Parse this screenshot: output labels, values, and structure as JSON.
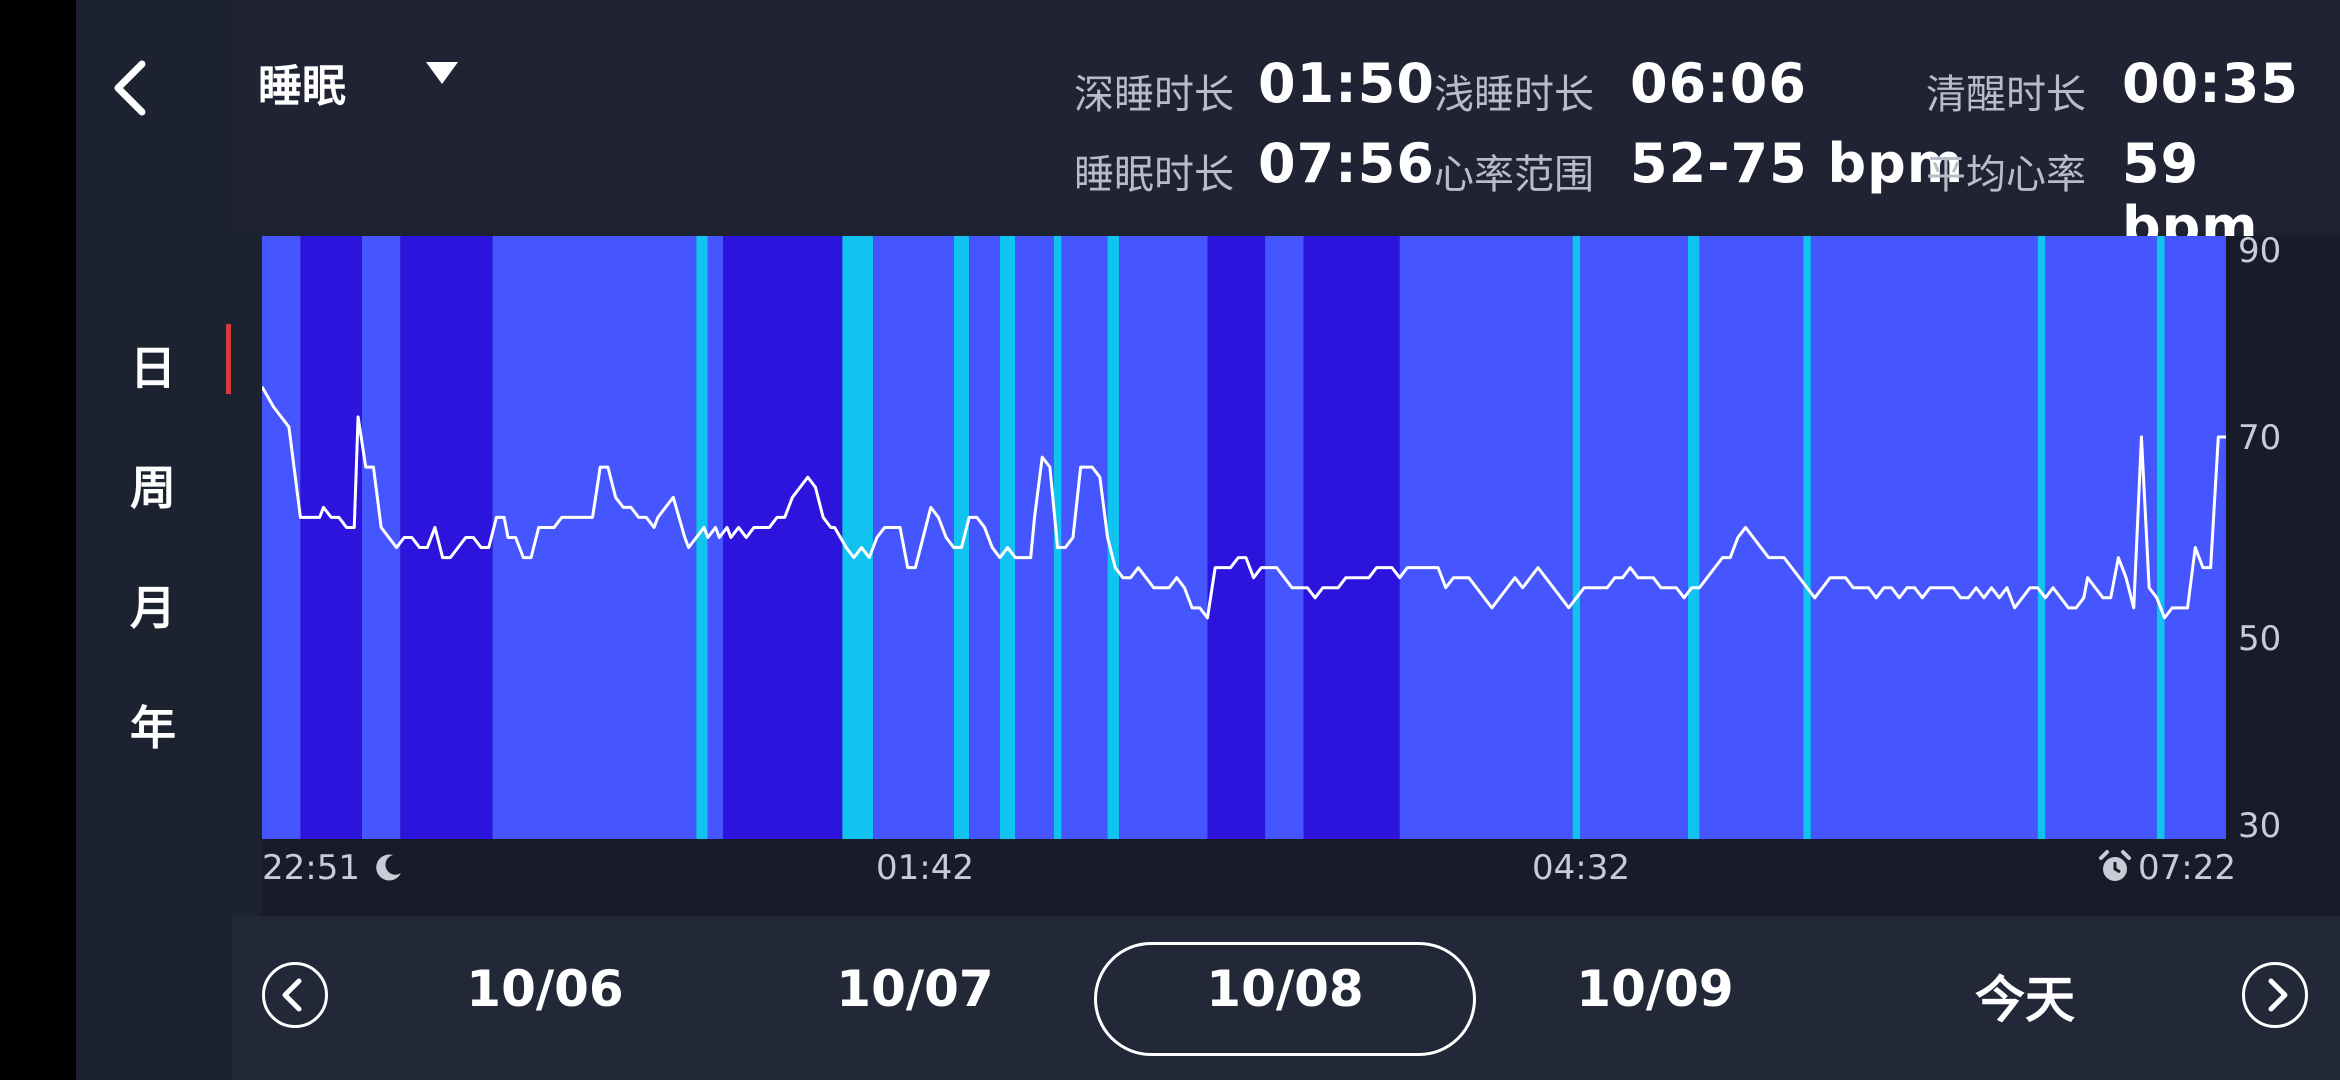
{
  "header": {
    "title": "睡眠",
    "back_icon": "chevron-left-icon",
    "dropdown_icon": "caret-down-icon"
  },
  "stats": [
    {
      "label": "深睡时长",
      "value": "01:50"
    },
    {
      "label": "浅睡时长",
      "value": "06:06"
    },
    {
      "label": "清醒时长",
      "value": "00:35"
    },
    {
      "label": "睡眠时长",
      "value": "07:56"
    },
    {
      "label": "心率范围",
      "value": "52-75 bpm"
    },
    {
      "label": "平均心率",
      "value": "59 bpm"
    }
  ],
  "period_tabs": [
    {
      "label": "日",
      "active": true
    },
    {
      "label": "周",
      "active": false
    },
    {
      "label": "月",
      "active": false
    },
    {
      "label": "年",
      "active": false
    }
  ],
  "date_nav": {
    "prev_icon": "chevron-left-circle-icon",
    "next_icon": "chevron-right-circle-icon",
    "dates": [
      "10/06",
      "10/07",
      "10/08",
      "10/09",
      "今天"
    ],
    "selected": "10/08"
  },
  "colors": {
    "deep_sleep": "#2c14dc",
    "light_sleep": "#4556ff",
    "awake": "#11c3f0",
    "heart_rate_line": "#ffffff",
    "active_indicator": "#d63a3a"
  },
  "chart_data": {
    "type": "area",
    "x_tick_labels": [
      "22:51",
      "01:42",
      "04:32",
      "07:22"
    ],
    "start_icon": "moon-icon",
    "end_icon": "alarm-clock-icon",
    "y_ticks": [
      30,
      50,
      70,
      90
    ],
    "ylim": [
      30,
      90
    ],
    "x_range_minutes": [
      0,
      511
    ],
    "sleep_stages": [
      {
        "stage": "light",
        "start": 0,
        "end": 10
      },
      {
        "stage": "deep",
        "start": 10,
        "end": 26
      },
      {
        "stage": "light",
        "start": 26,
        "end": 36
      },
      {
        "stage": "deep",
        "start": 36,
        "end": 60
      },
      {
        "stage": "light",
        "start": 60,
        "end": 113
      },
      {
        "stage": "awake",
        "start": 113,
        "end": 116
      },
      {
        "stage": "light",
        "start": 116,
        "end": 120
      },
      {
        "stage": "deep",
        "start": 120,
        "end": 151
      },
      {
        "stage": "awake",
        "start": 151,
        "end": 153
      },
      {
        "stage": "awake",
        "start": 153,
        "end": 159
      },
      {
        "stage": "light",
        "start": 159,
        "end": 180
      },
      {
        "stage": "awake",
        "start": 180,
        "end": 184
      },
      {
        "stage": "light",
        "start": 184,
        "end": 192
      },
      {
        "stage": "awake",
        "start": 192,
        "end": 196
      },
      {
        "stage": "light",
        "start": 196,
        "end": 206
      },
      {
        "stage": "awake",
        "start": 206,
        "end": 208
      },
      {
        "stage": "light",
        "start": 208,
        "end": 220
      },
      {
        "stage": "awake",
        "start": 220,
        "end": 223
      },
      {
        "stage": "light",
        "start": 223,
        "end": 246
      },
      {
        "stage": "deep",
        "start": 246,
        "end": 261
      },
      {
        "stage": "light",
        "start": 261,
        "end": 271
      },
      {
        "stage": "deep",
        "start": 271,
        "end": 296
      },
      {
        "stage": "light",
        "start": 296,
        "end": 341
      },
      {
        "stage": "awake",
        "start": 341,
        "end": 343
      },
      {
        "stage": "light",
        "start": 343,
        "end": 371
      },
      {
        "stage": "awake",
        "start": 371,
        "end": 374
      },
      {
        "stage": "light",
        "start": 374,
        "end": 401
      },
      {
        "stage": "awake",
        "start": 401,
        "end": 403
      },
      {
        "stage": "light",
        "start": 403,
        "end": 462
      },
      {
        "stage": "awake",
        "start": 462,
        "end": 464
      },
      {
        "stage": "light",
        "start": 464,
        "end": 493
      },
      {
        "stage": "awake",
        "start": 493,
        "end": 495
      },
      {
        "stage": "light",
        "start": 495,
        "end": 511
      }
    ],
    "heart_rate": {
      "minutes": [
        0,
        3,
        7,
        8,
        10,
        12,
        15,
        16,
        18,
        20,
        22,
        24,
        25,
        27,
        29,
        31,
        33,
        35,
        37,
        39,
        41,
        43,
        45,
        47,
        49,
        53,
        55,
        57,
        59,
        61,
        63,
        64,
        66,
        68,
        70,
        72,
        74,
        76,
        78,
        80,
        82,
        84,
        86,
        88,
        90,
        92,
        94,
        96,
        98,
        100,
        102,
        103,
        105,
        107,
        110,
        111,
        113,
        115,
        116,
        118,
        119,
        121,
        122,
        124,
        126,
        128,
        130,
        132,
        134,
        136,
        138,
        140,
        142,
        144,
        146,
        148,
        149,
        152,
        154,
        156,
        158,
        160,
        162,
        164,
        166,
        168,
        170,
        172,
        174,
        176,
        178,
        180,
        182,
        184,
        186,
        188,
        190,
        192,
        194,
        196,
        198,
        200,
        201,
        203,
        205,
        207,
        209,
        211,
        213,
        214,
        216,
        218,
        220,
        222,
        224,
        226,
        228,
        230,
        232,
        234,
        236,
        238,
        240,
        242,
        244,
        246,
        248,
        250,
        252,
        254,
        256,
        258,
        260,
        262,
        264,
        266,
        268,
        270,
        272,
        274,
        276,
        278,
        280,
        282,
        284,
        286,
        288,
        290,
        292,
        294,
        296,
        298,
        300,
        302,
        304,
        306,
        308,
        310,
        312,
        314,
        316,
        318,
        320,
        322,
        324,
        326,
        328,
        330,
        332,
        334,
        336,
        338,
        340,
        342,
        344,
        346,
        348,
        350,
        352,
        354,
        356,
        358,
        360,
        362,
        364,
        366,
        368,
        370,
        372,
        374,
        376,
        378,
        380,
        382,
        384,
        386,
        388,
        390,
        392,
        394,
        396,
        398,
        400,
        402,
        404,
        406,
        408,
        410,
        412,
        414,
        416,
        418,
        420,
        422,
        424,
        426,
        428,
        430,
        432,
        434,
        436,
        438,
        440,
        442,
        444,
        446,
        448,
        450,
        452,
        454,
        456,
        458,
        460,
        462,
        464,
        466,
        468,
        470,
        472,
        474,
        475,
        477,
        479,
        481,
        483,
        485,
        487,
        489,
        491,
        493,
        495,
        497,
        499,
        501,
        503,
        505,
        507,
        509,
        511
      ],
      "bpm": [
        75,
        73,
        71,
        68,
        62,
        62,
        62,
        63,
        62,
        62,
        61,
        61,
        72,
        67,
        67,
        61,
        60,
        59,
        60,
        60,
        59,
        59,
        61,
        58,
        58,
        60,
        60,
        59,
        59,
        62,
        62,
        60,
        60,
        58,
        58,
        61,
        61,
        61,
        62,
        62,
        62,
        62,
        62,
        67,
        67,
        64,
        63,
        63,
        62,
        62,
        61,
        62,
        63,
        64,
        60,
        59,
        60,
        61,
        60,
        61,
        60,
        61,
        60,
        61,
        60,
        61,
        61,
        61,
        62,
        62,
        64,
        65,
        66,
        65,
        62,
        61,
        61,
        59,
        58,
        59,
        58,
        60,
        61,
        61,
        61,
        57,
        57,
        60,
        63,
        62,
        60,
        59,
        59,
        62,
        62,
        61,
        59,
        58,
        59,
        58,
        58,
        58,
        62,
        68,
        67,
        59,
        59,
        60,
        67,
        67,
        67,
        66,
        60,
        57,
        56,
        56,
        57,
        56,
        55,
        55,
        55,
        56,
        55,
        53,
        53,
        52,
        57,
        57,
        57,
        58,
        58,
        56,
        57,
        57,
        57,
        56,
        55,
        55,
        55,
        54,
        55,
        55,
        55,
        56,
        56,
        56,
        56,
        57,
        57,
        57,
        56,
        57,
        57,
        57,
        57,
        57,
        55,
        56,
        56,
        56,
        55,
        54,
        53,
        54,
        55,
        56,
        55,
        56,
        57,
        56,
        55,
        54,
        53,
        54,
        55,
        55,
        55,
        55,
        56,
        56,
        57,
        56,
        56,
        56,
        55,
        55,
        55,
        54,
        55,
        55,
        56,
        57,
        58,
        58,
        60,
        61,
        60,
        59,
        58,
        58,
        58,
        57,
        56,
        55,
        54,
        55,
        56,
        56,
        56,
        55,
        55,
        55,
        54,
        55,
        55,
        54,
        55,
        55,
        54,
        55,
        55,
        55,
        55,
        54,
        54,
        55,
        54,
        55,
        54,
        55,
        53,
        54,
        55,
        55,
        54,
        55,
        54,
        53,
        53,
        54,
        56,
        55,
        54,
        54,
        58,
        56,
        53,
        70,
        55,
        54,
        52,
        53,
        53,
        53,
        59,
        57,
        57,
        70,
        70,
        57,
        57,
        61,
        61,
        67,
        63,
        62
      ]
    }
  }
}
